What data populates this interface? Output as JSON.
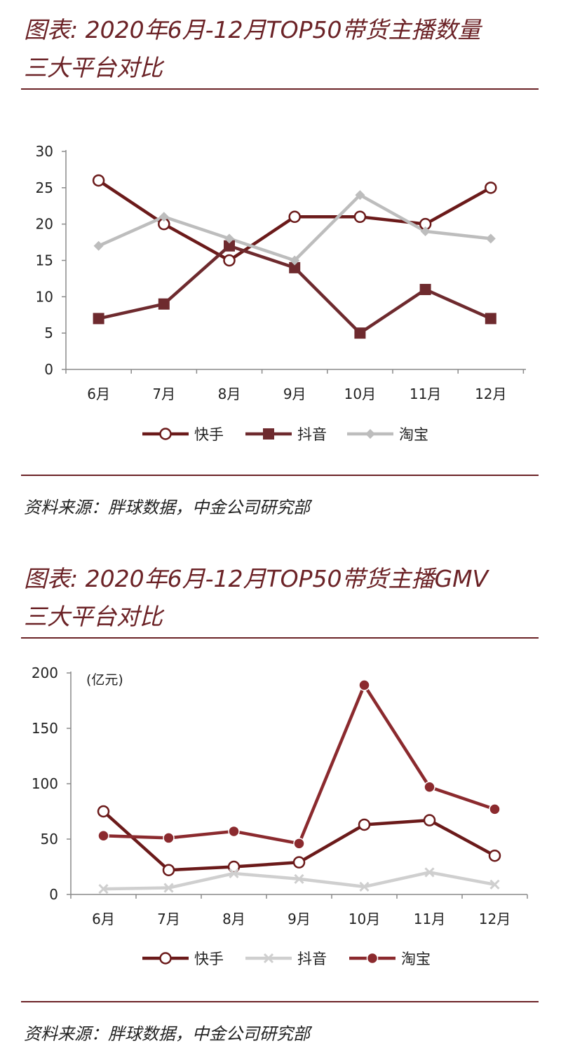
{
  "charts": [
    {
      "title_line1": "图表: 2020年6月-12月TOP50带货主播数量",
      "title_line2": "三大平台对比",
      "source": "资料来源：胖球数据，中金公司研究部"
    },
    {
      "title_line1": "图表: 2020年6月-12月TOP50带货主播GMV",
      "title_line2": "三大平台对比",
      "source": "资料来源：胖球数据，中金公司研究部"
    }
  ],
  "chart_data": [
    {
      "type": "line",
      "categories": [
        "6月",
        "7月",
        "8月",
        "9月",
        "10月",
        "11月",
        "12月"
      ],
      "ylim": [
        0,
        30
      ],
      "yticks": [
        0,
        5,
        10,
        15,
        20,
        25,
        30
      ],
      "ylabel": "",
      "legend_position": "bottom",
      "series": [
        {
          "name": "快手",
          "values": [
            26,
            20,
            15,
            21,
            21,
            20,
            25
          ],
          "color": "#6b1a1a",
          "marker": "open-circle"
        },
        {
          "name": "抖音",
          "values": [
            7,
            9,
            17,
            14,
            5,
            11,
            7
          ],
          "color": "#6e2a2e",
          "marker": "filled-square"
        },
        {
          "name": "淘宝",
          "values": [
            17,
            21,
            18,
            15,
            24,
            19,
            18
          ],
          "color": "#bdbdbd",
          "marker": "diamond"
        }
      ]
    },
    {
      "type": "line",
      "categories": [
        "6月",
        "7月",
        "8月",
        "9月",
        "10月",
        "11月",
        "12月"
      ],
      "ylim": [
        0,
        200
      ],
      "yticks": [
        0,
        50,
        100,
        150,
        200
      ],
      "unit_label": "(亿元)",
      "legend_position": "bottom",
      "series": [
        {
          "name": "快手",
          "values": [
            75,
            22,
            25,
            29,
            63,
            67,
            35
          ],
          "color": "#6b1a1a",
          "marker": "open-circle"
        },
        {
          "name": "抖音",
          "values": [
            5,
            6,
            19,
            14,
            7,
            20,
            9
          ],
          "color": "#cfcfcf",
          "marker": "cross"
        },
        {
          "name": "淘宝",
          "values": [
            53,
            51,
            57,
            46,
            189,
            97,
            77
          ],
          "color": "#8b2a2e",
          "marker": "filled-circle"
        }
      ]
    }
  ]
}
